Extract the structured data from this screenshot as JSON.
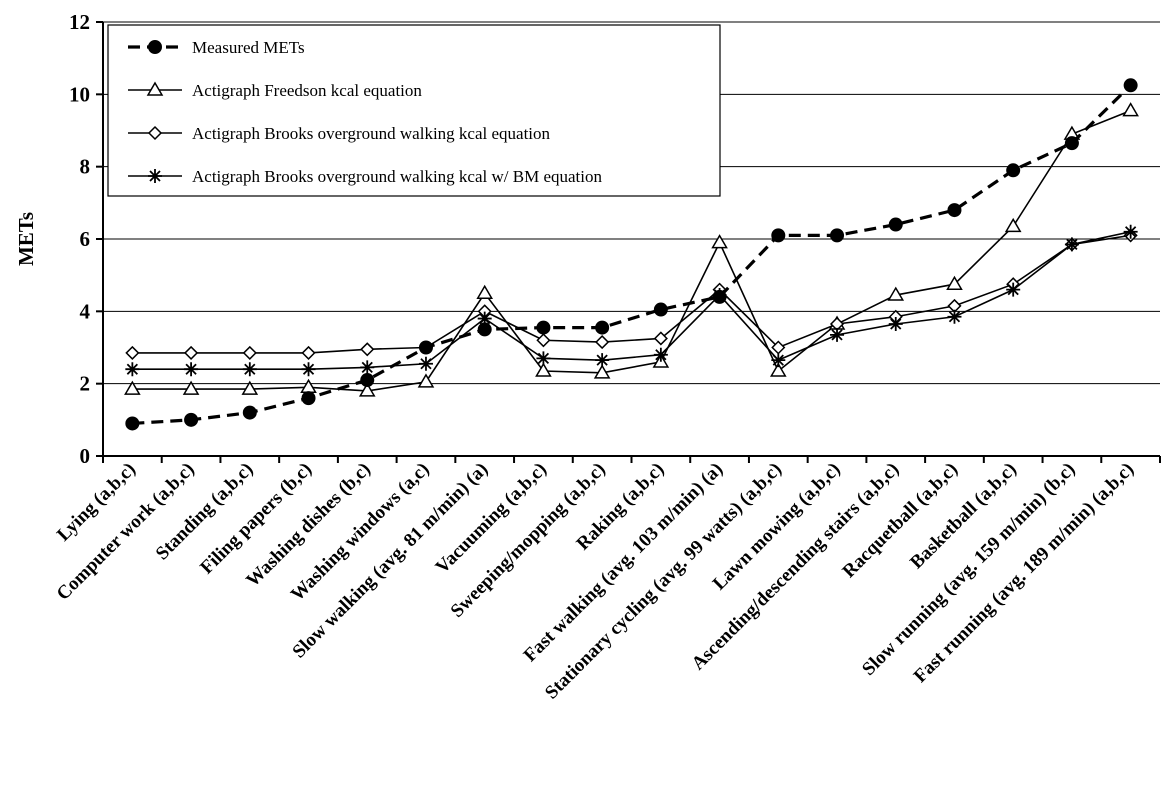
{
  "chart_data": {
    "type": "line",
    "title": "",
    "xlabel": "",
    "ylabel": "METs",
    "ylim": [
      0,
      12
    ],
    "yticks": [
      0,
      2,
      4,
      6,
      8,
      10,
      12
    ],
    "grid": "horizontal",
    "legend_position": "top-left",
    "categories": [
      "Lying (a,b,c)",
      "Computer work (a,b,c)",
      "Standing (a,b,c)",
      "Filing papers (b,c)",
      "Washing dishes (b,c)",
      "Washing windows (a,c)",
      "Slow walking (avg. 81 m/min) (a)",
      "Vacuuming (a,b,c)",
      "Sweeping/mopping (a,b,c)",
      "Raking (a,b,c)",
      "Fast walking (avg. 103 m/min) (a)",
      "Stationary cycling (avg. 99 watts) (a,b,c)",
      "Lawn mowing (a,b,c)",
      "Ascending/descending stairs (a,b,c)",
      "Racquetball (a,b,c)",
      "Basketball (a,b,c)",
      "Slow running (avg. 159 m/min) (b,c)",
      "Fast running (avg. 189 m/min) (a,b,c)"
    ],
    "series": [
      {
        "name": "Measured METs",
        "marker": "filled-circle",
        "dashed": true,
        "values": [
          0.9,
          1.0,
          1.2,
          1.6,
          2.1,
          3.0,
          3.5,
          3.55,
          3.55,
          4.05,
          4.4,
          6.1,
          6.1,
          6.4,
          6.8,
          7.9,
          8.65,
          10.25
        ]
      },
      {
        "name": "Actigraph Freedson kcal equation",
        "marker": "triangle",
        "dashed": false,
        "values": [
          1.85,
          1.85,
          1.85,
          1.9,
          1.8,
          2.05,
          4.5,
          2.35,
          2.3,
          2.6,
          5.9,
          2.35,
          3.65,
          4.45,
          4.75,
          6.35,
          8.9,
          9.55
        ]
      },
      {
        "name": "Actigraph Brooks overground walking kcal equation",
        "marker": "diamond",
        "dashed": false,
        "values": [
          2.85,
          2.85,
          2.85,
          2.85,
          2.95,
          3.0,
          4.0,
          3.2,
          3.15,
          3.25,
          4.6,
          3.0,
          3.65,
          3.85,
          4.15,
          4.75,
          5.85,
          6.1
        ]
      },
      {
        "name": "Actigraph Brooks overground walking kcal w/ BM equation",
        "marker": "asterisk",
        "dashed": false,
        "values": [
          2.4,
          2.4,
          2.4,
          2.4,
          2.45,
          2.55,
          3.8,
          2.7,
          2.65,
          2.8,
          4.45,
          2.65,
          3.35,
          3.65,
          3.85,
          4.6,
          5.85,
          6.2
        ]
      }
    ]
  }
}
